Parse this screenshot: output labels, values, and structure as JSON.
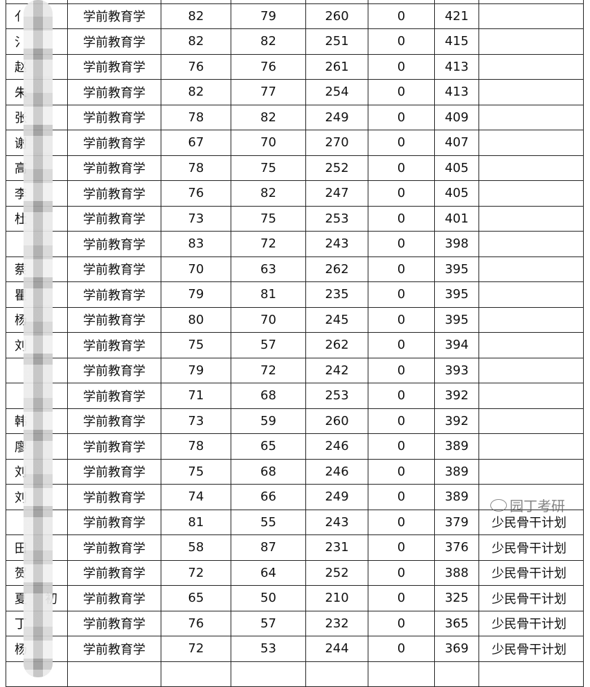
{
  "rows": [
    {
      "name_l": "亻",
      "name_r": "",
      "major": "学前教育学",
      "s1": "82",
      "s2": "79",
      "s3": "260",
      "s4": "0",
      "total": "421",
      "note": ""
    },
    {
      "name_l": "氵",
      "name_r": "",
      "major": "学前教育学",
      "s1": "82",
      "s2": "82",
      "s3": "251",
      "s4": "0",
      "total": "415",
      "note": ""
    },
    {
      "name_l": "赵",
      "name_r": "",
      "major": "学前教育学",
      "s1": "76",
      "s2": "76",
      "s3": "261",
      "s4": "0",
      "total": "413",
      "note": ""
    },
    {
      "name_l": "朱",
      "name_r": "",
      "major": "学前教育学",
      "s1": "82",
      "s2": "77",
      "s3": "254",
      "s4": "0",
      "total": "413",
      "note": ""
    },
    {
      "name_l": "张",
      "name_r": "",
      "major": "学前教育学",
      "s1": "78",
      "s2": "82",
      "s3": "249",
      "s4": "0",
      "total": "409",
      "note": ""
    },
    {
      "name_l": "谢",
      "name_r": "",
      "major": "学前教育学",
      "s1": "67",
      "s2": "70",
      "s3": "270",
      "s4": "0",
      "total": "407",
      "note": ""
    },
    {
      "name_l": "高",
      "name_r": "",
      "major": "学前教育学",
      "s1": "78",
      "s2": "75",
      "s3": "252",
      "s4": "0",
      "total": "405",
      "note": ""
    },
    {
      "name_l": "李",
      "name_r": "",
      "major": "学前教育学",
      "s1": "76",
      "s2": "82",
      "s3": "247",
      "s4": "0",
      "total": "405",
      "note": ""
    },
    {
      "name_l": "杜",
      "name_r": "",
      "major": "学前教育学",
      "s1": "73",
      "s2": "75",
      "s3": "253",
      "s4": "0",
      "total": "401",
      "note": ""
    },
    {
      "name_l": "",
      "name_r": "",
      "major": "学前教育学",
      "s1": "83",
      "s2": "72",
      "s3": "243",
      "s4": "0",
      "total": "398",
      "note": ""
    },
    {
      "name_l": "蔡",
      "name_r": "",
      "major": "学前教育学",
      "s1": "70",
      "s2": "63",
      "s3": "262",
      "s4": "0",
      "total": "395",
      "note": ""
    },
    {
      "name_l": "瞿",
      "name_r": "",
      "major": "学前教育学",
      "s1": "79",
      "s2": "81",
      "s3": "235",
      "s4": "0",
      "total": "395",
      "note": ""
    },
    {
      "name_l": "杨",
      "name_r": "",
      "major": "学前教育学",
      "s1": "80",
      "s2": "70",
      "s3": "245",
      "s4": "0",
      "total": "395",
      "note": ""
    },
    {
      "name_l": "刘",
      "name_r": "",
      "major": "学前教育学",
      "s1": "75",
      "s2": "57",
      "s3": "262",
      "s4": "0",
      "total": "394",
      "note": ""
    },
    {
      "name_l": "",
      "name_r": "",
      "major": "学前教育学",
      "s1": "79",
      "s2": "72",
      "s3": "242",
      "s4": "0",
      "total": "393",
      "note": ""
    },
    {
      "name_l": "",
      "name_r": "",
      "major": "学前教育学",
      "s1": "71",
      "s2": "68",
      "s3": "253",
      "s4": "0",
      "total": "392",
      "note": ""
    },
    {
      "name_l": "韩",
      "name_r": "",
      "major": "学前教育学",
      "s1": "73",
      "s2": "59",
      "s3": "260",
      "s4": "0",
      "total": "392",
      "note": ""
    },
    {
      "name_l": "廖",
      "name_r": "",
      "major": "学前教育学",
      "s1": "78",
      "s2": "65",
      "s3": "246",
      "s4": "0",
      "total": "389",
      "note": ""
    },
    {
      "name_l": "刘",
      "name_r": "",
      "major": "学前教育学",
      "s1": "75",
      "s2": "68",
      "s3": "246",
      "s4": "0",
      "total": "389",
      "note": ""
    },
    {
      "name_l": "刘",
      "name_r": "",
      "major": "学前教育学",
      "s1": "74",
      "s2": "66",
      "s3": "249",
      "s4": "0",
      "total": "389",
      "note": ""
    },
    {
      "name_l": "",
      "name_r": "",
      "major": "学前教育学",
      "s1": "81",
      "s2": "55",
      "s3": "243",
      "s4": "0",
      "total": "379",
      "note": "少民骨干计划"
    },
    {
      "name_l": "田",
      "name_r": "",
      "major": "学前教育学",
      "s1": "58",
      "s2": "87",
      "s3": "231",
      "s4": "0",
      "total": "376",
      "note": "少民骨干计划"
    },
    {
      "name_l": "贺",
      "name_r": "",
      "major": "学前教育学",
      "s1": "72",
      "s2": "64",
      "s3": "252",
      "s4": "0",
      "total": "388",
      "note": "少民骨干计划"
    },
    {
      "name_l": "夏",
      "name_r": "初",
      "major": "学前教育学",
      "s1": "65",
      "s2": "50",
      "s3": "210",
      "s4": "0",
      "total": "325",
      "note": "少民骨干计划"
    },
    {
      "name_l": "丁",
      "name_r": "",
      "major": "学前教育学",
      "s1": "76",
      "s2": "57",
      "s3": "232",
      "s4": "0",
      "total": "365",
      "note": "少民骨干计划"
    },
    {
      "name_l": "杨",
      "name_r": "",
      "major": "学前教育学",
      "s1": "72",
      "s2": "53",
      "s3": "244",
      "s4": "0",
      "total": "369",
      "note": "少民骨干计划"
    }
  ],
  "watermark": {
    "text": "园丁考研",
    "icon": "wechat-logo-icon"
  }
}
